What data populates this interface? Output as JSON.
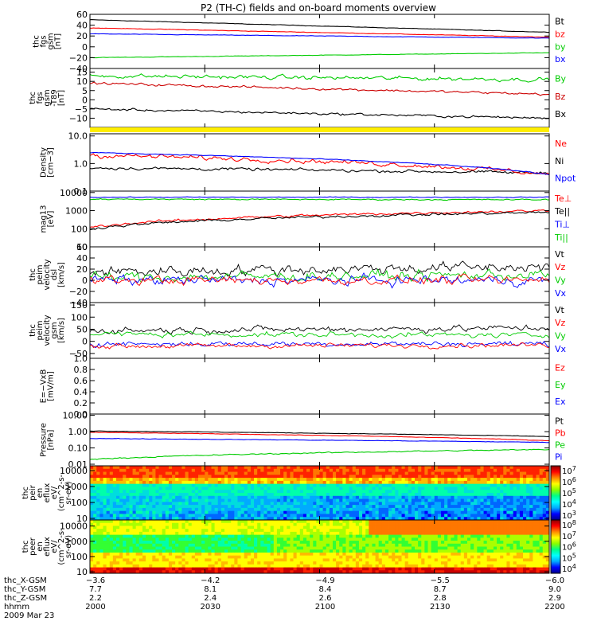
{
  "title": "P2 (TH-C) fields and on-board moments overview",
  "colors": {
    "black": "#000000",
    "red": "#ff0000",
    "green": "#00cc00",
    "blue": "#0000ff",
    "yellow": "#ffee00"
  },
  "chart_data": [
    {
      "type": "line",
      "name": "fgs-gsm",
      "ylabel": [
        "thc",
        "fgs",
        "gsm",
        "[nT]"
      ],
      "yticks": [
        "60",
        "40",
        "20",
        "0",
        "−20",
        "−40"
      ],
      "ylim": [
        -40,
        60
      ],
      "legend": [
        {
          "label": "Bt",
          "color": "#000000"
        },
        {
          "label": "bz",
          "color": "#ff0000"
        },
        {
          "label": "by",
          "color": "#00cc00"
        },
        {
          "label": "bx",
          "color": "#0000ff"
        }
      ],
      "series": [
        {
          "color": "#000000",
          "start": 50,
          "end": 27,
          "noise": 0.4
        },
        {
          "color": "#ff0000",
          "start": 35,
          "end": 18,
          "noise": 0.4
        },
        {
          "color": "#00cc00",
          "start": -20,
          "end": -11,
          "noise": 0.4
        },
        {
          "color": "#0000ff",
          "start": 24,
          "end": 16,
          "noise": 0.4
        }
      ]
    },
    {
      "type": "line",
      "name": "fgs-dsl",
      "ylabel": [
        "thc",
        "fgs",
        "gsm",
        "-T89",
        "[nT]"
      ],
      "yticks": [
        "15",
        "10",
        "5",
        "0",
        "−5",
        "−10"
      ],
      "ylim": [
        -15,
        17
      ],
      "legend": [
        {
          "label": "By",
          "color": "#00cc00"
        },
        {
          "label": "Bz",
          "color": "#cc0000"
        },
        {
          "label": "Bx",
          "color": "#000000"
        }
      ],
      "series": [
        {
          "color": "#00cc00",
          "start": 13,
          "end": 11,
          "noise": 1.0
        },
        {
          "color": "#cc0000",
          "start": 9,
          "end": 3,
          "noise": 0.6
        },
        {
          "color": "#000000",
          "start": -5,
          "end": -10,
          "noise": 0.6
        }
      ]
    },
    {
      "type": "line",
      "name": "density",
      "scale": "log",
      "ylabel": [
        "Density",
        "[cm−3]"
      ],
      "yticks": [
        "10.0",
        "1.0",
        "0.1"
      ],
      "ylim": [
        0.1,
        12
      ],
      "legend": [
        {
          "label": "Ne",
          "color": "#ff0000"
        },
        {
          "label": "Ni",
          "color": "#000000"
        },
        {
          "label": "Npot",
          "color": "#0000ff"
        }
      ],
      "series": [
        {
          "color": "#000000",
          "start": 0.7,
          "end": 0.45,
          "noise": 0.08
        },
        {
          "color": "#ff0000",
          "start": 2.0,
          "end": 0.4,
          "noise": 0.12
        },
        {
          "color": "#0000ff",
          "start": 2.5,
          "end": 0.4,
          "noise": 0.02
        }
      ]
    },
    {
      "type": "line",
      "name": "temperature",
      "scale": "log",
      "ylabel": [
        "mag13",
        "[eV]"
      ],
      "yticks": [
        "10000",
        "1000",
        "100",
        "10"
      ],
      "ylim": [
        10,
        12000
      ],
      "legend": [
        {
          "label": "Te⊥",
          "color": "#ff0000"
        },
        {
          "label": "Te||",
          "color": "#000000"
        },
        {
          "label": "Ti⊥",
          "color": "#0000ff"
        },
        {
          "label": "Ti||",
          "color": "#00cc00"
        }
      ],
      "series": [
        {
          "color": "#0000ff",
          "start": 5500,
          "end": 5500,
          "noise": 0.03
        },
        {
          "color": "#00cc00",
          "start": 4300,
          "end": 4000,
          "noise": 0.05
        },
        {
          "color": "#ff0000",
          "start": 120,
          "end": 1000,
          "noise": 0.1
        },
        {
          "color": "#000000",
          "start": 100,
          "end": 800,
          "noise": 0.1
        }
      ]
    },
    {
      "type": "line",
      "name": "peim-velocity-dsl",
      "ylabel": [
        "thc",
        "peim",
        "velocity",
        "dsl",
        "[km/s]"
      ],
      "yticks": [
        "60",
        "40",
        "20",
        "0",
        "−20",
        "−40"
      ],
      "ylim": [
        -40,
        60
      ],
      "legend": [
        {
          "label": "Vt",
          "color": "#000000"
        },
        {
          "label": "Vz",
          "color": "#ff0000"
        },
        {
          "label": "Vy",
          "color": "#00cc00"
        },
        {
          "label": "Vx",
          "color": "#0000ff"
        }
      ],
      "series": [
        {
          "color": "#000000",
          "start": 15,
          "end": 25,
          "noise": 9
        },
        {
          "color": "#00cc00",
          "start": 5,
          "end": 10,
          "noise": 8
        },
        {
          "color": "#0000ff",
          "start": 0,
          "end": 0,
          "noise": 8
        },
        {
          "color": "#ff0000",
          "start": 0,
          "end": 0,
          "noise": 7
        }
      ]
    },
    {
      "type": "line",
      "name": "peim-velocity-gsm",
      "ylabel": [
        "thc",
        "peim",
        "velocity",
        "gsm",
        "[km/s]"
      ],
      "yticks": [
        "150",
        "100",
        "50",
        "0",
        "−50"
      ],
      "ylim": [
        -70,
        160
      ],
      "legend": [
        {
          "label": "Vt",
          "color": "#000000"
        },
        {
          "label": "Vz",
          "color": "#ff0000"
        },
        {
          "label": "Vy",
          "color": "#00cc00"
        },
        {
          "label": "Vx",
          "color": "#0000ff"
        }
      ],
      "series": [
        {
          "color": "#000000",
          "start": 45,
          "end": 55,
          "noise": 12
        },
        {
          "color": "#00cc00",
          "start": 30,
          "end": 25,
          "noise": 10
        },
        {
          "color": "#0000ff",
          "start": -10,
          "end": -10,
          "noise": 10
        },
        {
          "color": "#ff0000",
          "start": -20,
          "end": -15,
          "noise": 9
        }
      ]
    },
    {
      "type": "line",
      "name": "efield",
      "ylabel": [
        "E=−VxB",
        "[mV/m]"
      ],
      "yticks": [
        "1.0",
        "0.8",
        "0.6",
        "0.4",
        "0.2",
        "0.0"
      ],
      "ylim": [
        0,
        1
      ],
      "legend": [
        {
          "label": "Ez",
          "color": "#ff0000"
        },
        {
          "label": "Ey",
          "color": "#00cc00"
        },
        {
          "label": "Ex",
          "color": "#0000ff"
        }
      ],
      "series": []
    },
    {
      "type": "line",
      "name": "pressure",
      "scale": "log",
      "ylabel": [
        "Pressure",
        "[nPa]"
      ],
      "yticks": [
        "10.00",
        "1.00",
        "0.10",
        "0.01"
      ],
      "ylim": [
        0.008,
        12
      ],
      "legend": [
        {
          "label": "Pt",
          "color": "#000000"
        },
        {
          "label": "Pb",
          "color": "#ff0000"
        },
        {
          "label": "Pe",
          "color": "#00cc00"
        },
        {
          "label": "Pi",
          "color": "#0000ff"
        }
      ],
      "series": [
        {
          "color": "#000000",
          "start": 1.1,
          "end": 0.5,
          "noise": 0.02
        },
        {
          "color": "#ff0000",
          "start": 0.9,
          "end": 0.28,
          "noise": 0.02
        },
        {
          "color": "#0000ff",
          "start": 0.38,
          "end": 0.22,
          "noise": 0.02
        },
        {
          "color": "#00cc00",
          "start": 0.02,
          "end": 0.08,
          "noise": 0.05
        }
      ]
    },
    {
      "type": "heatmap",
      "name": "peir-eflux",
      "scale": "log",
      "ylabel": [
        "thc",
        "peir",
        "en",
        "eflux",
        "eV/",
        "(cm^2-s-",
        "sr-eV)"
      ],
      "yticks": [
        "10000",
        "1000",
        "100",
        "10"
      ],
      "ylim": [
        8,
        20000
      ],
      "colorbar_ticks": [
        "10^7",
        "10^6",
        "10^5",
        "10^4",
        "10^3"
      ]
    },
    {
      "type": "heatmap",
      "name": "peer-eflux",
      "scale": "log",
      "ylabel": [
        "thc",
        "peer",
        "en",
        "eflux",
        "eV/",
        "(cm^2-s-",
        "sr-eV)"
      ],
      "yticks": [
        "10000",
        "1000",
        "100",
        "10"
      ],
      "ylim": [
        8,
        25000
      ],
      "colorbar_ticks": [
        "10^8",
        "10^7",
        "10^6",
        "10^5",
        "10^4"
      ]
    }
  ],
  "x_axis": {
    "labels": [
      "thc_X-GSM",
      "thc_Y-GSM",
      "thc_Z-GSM",
      "hhmm",
      "2009 Mar 23"
    ],
    "ticks": [
      {
        "values": [
          "−3.6",
          "7.7",
          "2.2",
          "2000"
        ]
      },
      {
        "values": [
          "−4.2",
          "8.1",
          "2.4",
          "2030"
        ]
      },
      {
        "values": [
          "−4.9",
          "8.4",
          "2.6",
          "2100"
        ]
      },
      {
        "values": [
          "−5.5",
          "8.7",
          "2.8",
          "2130"
        ]
      },
      {
        "values": [
          "−6.0",
          "9.0",
          "2.9",
          "2200"
        ]
      }
    ]
  }
}
